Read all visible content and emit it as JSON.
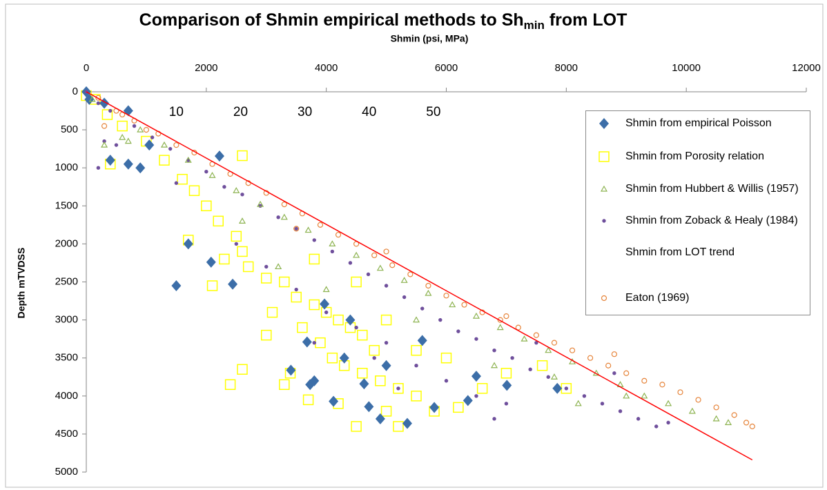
{
  "chart_data": {
    "type": "scatter",
    "title": [
      "Comparison of Shmin empirical methods to Sh",
      "min",
      " from LOT"
    ],
    "x_label": "Shmin (psi, MPa)",
    "y_label": "Depth mTVDSS",
    "xlim": [
      0,
      12000
    ],
    "xticks": [
      0,
      2000,
      4000,
      6000,
      8000,
      10000,
      12000
    ],
    "ylim": [
      0,
      5000
    ],
    "yticks": [
      0,
      500,
      1000,
      1500,
      2000,
      2500,
      3000,
      3500,
      4000,
      4500,
      5000
    ],
    "y_inverted": true,
    "x_axis_position": "top",
    "x2lim": [
      -4,
      108
    ],
    "x2ticks": [
      10,
      20,
      30,
      40,
      50
    ],
    "legend": "right",
    "series": [
      {
        "name": "Shmin from empirical Poisson",
        "color": "#3c6ea8",
        "marker": "diamond",
        "x": [
          0,
          50,
          300,
          700,
          1050,
          2220,
          400,
          700,
          900,
          2080,
          1700,
          2440,
          1500,
          3410,
          3730,
          4120,
          4710,
          4630,
          5350,
          6360,
          7850,
          7010,
          6500,
          5600,
          3970,
          3680,
          4300,
          5000,
          4400,
          3800,
          5800,
          4900
        ],
        "values": [
          0,
          100,
          150,
          250,
          700,
          845,
          900,
          950,
          1000,
          2240,
          2000,
          2530,
          2550,
          3660,
          3850,
          4070,
          4140,
          3840,
          4360,
          4060,
          3900,
          3860,
          3740,
          3270,
          2790,
          3290,
          3500,
          3600,
          3000,
          3800,
          4150,
          4300
        ]
      },
      {
        "name": "Shmin from Porosity relation",
        "color": "#ffff00",
        "marker": "square",
        "x": [
          0,
          150,
          350,
          600,
          1000,
          1300,
          1600,
          1800,
          2000,
          2200,
          2500,
          2600,
          2300,
          2700,
          3000,
          3300,
          3500,
          3800,
          4000,
          4200,
          4400,
          4600,
          3600,
          3900,
          4100,
          4300,
          4600,
          4900,
          5200,
          5500,
          5000,
          5200,
          5800,
          6200,
          6600,
          7000,
          3400,
          3300,
          3700,
          4200,
          4800,
          5500,
          6000,
          2100,
          1700,
          2600,
          400,
          3100,
          4500,
          3800,
          5000,
          7600,
          8000,
          4500,
          3000,
          2400,
          2600
        ],
        "values": [
          50,
          100,
          300,
          450,
          650,
          900,
          1150,
          1300,
          1500,
          1700,
          1900,
          2100,
          2200,
          2300,
          2450,
          2500,
          2700,
          2800,
          2900,
          3000,
          3100,
          3200,
          3100,
          3300,
          3500,
          3600,
          3700,
          3800,
          3900,
          4000,
          4200,
          4400,
          4200,
          4150,
          3900,
          3700,
          3700,
          3850,
          4050,
          4100,
          3400,
          3400,
          3500,
          2550,
          1950,
          840,
          950,
          2900,
          2500,
          2200,
          3000,
          3600,
          3900,
          4400,
          3200,
          3850,
          3650
        ]
      },
      {
        "name": "Shmin from Hubbert & Willis (1957)",
        "color": "#8db351",
        "marker": "triangle",
        "x": [
          100,
          600,
          700,
          300,
          900,
          1300,
          1700,
          2100,
          2500,
          2900,
          3300,
          3700,
          4100,
          4500,
          4900,
          5300,
          5700,
          6100,
          6500,
          6900,
          7300,
          7700,
          8100,
          8500,
          8900,
          9300,
          9700,
          10100,
          10500,
          10700,
          9000,
          8200,
          7800,
          3200,
          4000,
          2600,
          5500,
          6800
        ],
        "values": [
          100,
          600,
          650,
          700,
          500,
          700,
          900,
          1100,
          1300,
          1480,
          1650,
          1820,
          2000,
          2150,
          2320,
          2480,
          2650,
          2800,
          2950,
          3100,
          3250,
          3400,
          3550,
          3700,
          3850,
          4000,
          4100,
          4200,
          4300,
          4350,
          4000,
          4100,
          3750,
          2300,
          2600,
          1700,
          3000,
          3600
        ]
      },
      {
        "name": "Shmin from Zoback & Healy (1984)",
        "color": "#6f4f9c",
        "marker": "dot",
        "x": [
          0,
          200,
          400,
          300,
          500,
          200,
          800,
          1100,
          1400,
          1700,
          2000,
          2300,
          2600,
          2900,
          3200,
          3500,
          3800,
          4100,
          4400,
          4700,
          5000,
          5300,
          5600,
          5900,
          6200,
          6500,
          6800,
          7100,
          7400,
          7700,
          8000,
          8300,
          8600,
          8900,
          9200,
          9500,
          9700,
          3000,
          3500,
          4000,
          4500,
          5000,
          5500,
          6000,
          6500,
          7000,
          2500,
          1500,
          4800,
          3800,
          5200,
          6800,
          8800,
          7500
        ],
        "values": [
          0,
          150,
          250,
          650,
          700,
          1000,
          450,
          600,
          750,
          900,
          1050,
          1250,
          1350,
          1500,
          1650,
          1800,
          1950,
          2100,
          2250,
          2400,
          2550,
          2700,
          2850,
          3000,
          3150,
          3250,
          3400,
          3500,
          3650,
          3750,
          3900,
          4000,
          4100,
          4200,
          4300,
          4400,
          4350,
          2300,
          2600,
          2900,
          3100,
          3300,
          3600,
          3800,
          4000,
          4100,
          2000,
          1200,
          3500,
          3300,
          3900,
          4300,
          3700,
          3300
        ]
      },
      {
        "name": "Shmin from LOT trend",
        "color": "#ff0000",
        "marker": "line",
        "x": [
          0,
          11100
        ],
        "values": [
          0,
          4840
        ]
      },
      {
        "name": "Eaton (1969)",
        "color": "#e6843a",
        "marker": "circle",
        "x": [
          200,
          500,
          800,
          1200,
          1500,
          1800,
          2100,
          2400,
          2700,
          3000,
          3300,
          3600,
          3900,
          4200,
          4500,
          4800,
          5100,
          5400,
          5700,
          6000,
          6300,
          6600,
          6900,
          7200,
          7500,
          7800,
          8100,
          8400,
          8700,
          9000,
          9300,
          9600,
          9900,
          10200,
          10500,
          10800,
          11000,
          11100,
          3500,
          5000,
          1000,
          600,
          300,
          7000,
          8800
        ],
        "values": [
          80,
          250,
          380,
          550,
          700,
          800,
          950,
          1080,
          1200,
          1330,
          1480,
          1600,
          1750,
          1880,
          2000,
          2150,
          2280,
          2400,
          2550,
          2680,
          2800,
          2900,
          3000,
          3100,
          3200,
          3300,
          3400,
          3500,
          3600,
          3700,
          3800,
          3850,
          3950,
          4050,
          4150,
          4250,
          4350,
          4400,
          1800,
          2100,
          500,
          300,
          450,
          2950,
          3450
        ]
      }
    ]
  }
}
